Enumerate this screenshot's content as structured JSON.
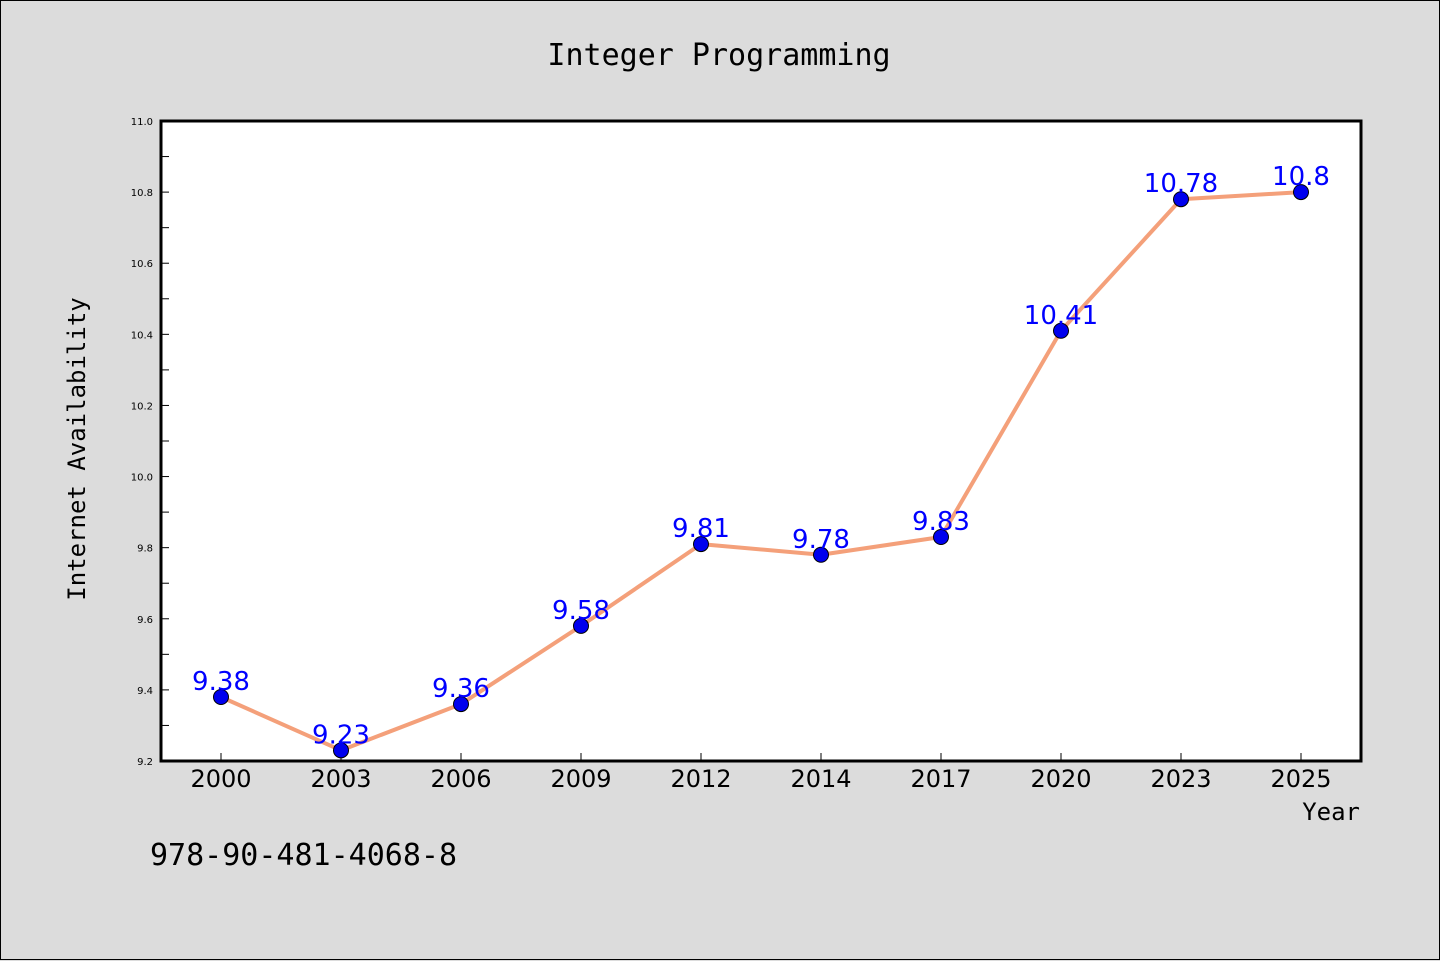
{
  "chart_data": {
    "type": "line",
    "title": "Integer Programming",
    "xlabel": "Year",
    "ylabel": "Internet Availability",
    "categories": [
      "2000",
      "2003",
      "2006",
      "2009",
      "2012",
      "2014",
      "2017",
      "2020",
      "2023",
      "2025"
    ],
    "series": [
      {
        "values": [
          9.38,
          9.23,
          9.36,
          9.58,
          9.81,
          9.78,
          9.83,
          10.41,
          10.78,
          10.8
        ],
        "line_color": "#f4a07a",
        "marker_color": "#0000ee"
      }
    ],
    "data_labels": [
      "9.38",
      "9.23",
      "9.36",
      "9.58",
      "9.81",
      "9.78",
      "9.83",
      "10.41",
      "10.78",
      "10.8"
    ],
    "data_label_color": "#0000ff",
    "ylim": [
      9.2,
      11.0
    ],
    "yticks": [
      "9.2",
      "9.4",
      "9.6",
      "9.8",
      "10.0",
      "10.2",
      "10.4",
      "10.6",
      "10.8",
      "11.0"
    ],
    "grid": false,
    "background": "#dcdcdc",
    "plot_background": "#ffffff"
  },
  "footer": {
    "isbn": "978-90-481-4068-8"
  }
}
